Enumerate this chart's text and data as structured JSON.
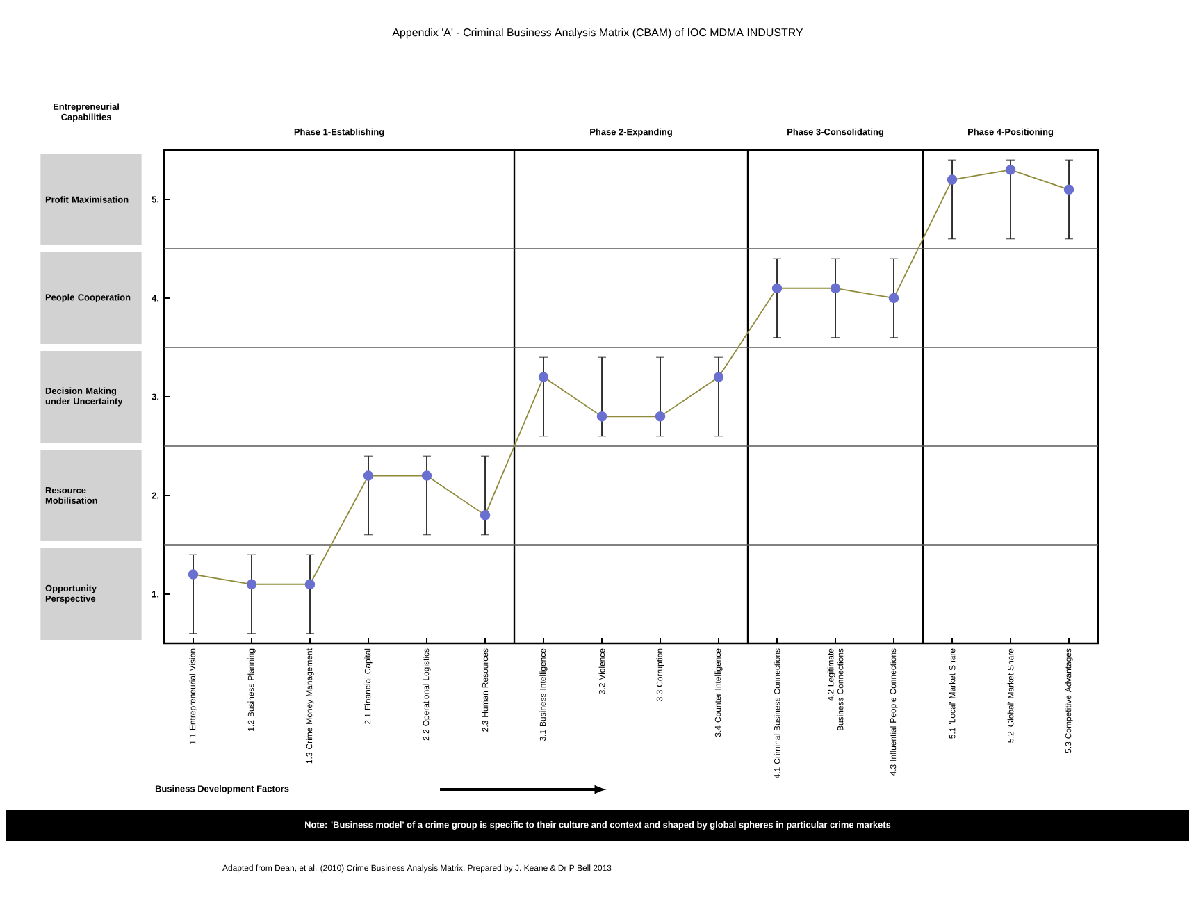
{
  "chart_data": {
    "type": "line",
    "title": "Appendix 'A' - Criminal Business Analysis Matrix (CBAM) of IOC MDMA INDUSTRY",
    "xlabel": "Business Development Factors",
    "categories": [
      "1.1 Entrepreneurial Vision",
      "1.2 Business Planning",
      "1.3 Crime Money Management",
      "2.1 Financial Capital",
      "2.2 Operational Logistics",
      "2.3 Human Resources",
      "3.1 Business Intelligence",
      "3.2 Violence",
      "3.3 Corruption",
      "3.4 Counter Intelligence",
      "4.1 Criminal Business Connections",
      "4.2 Legitimate Business Connections",
      "4.3 Influential People Connections",
      "5.1 'Local' Market Share",
      "5.2 'Global' Market Share",
      "5.3 Competitive Advantages"
    ],
    "values": [
      1.2,
      1.1,
      1.1,
      2.2,
      2.2,
      1.8,
      3.2,
      2.8,
      2.8,
      3.2,
      4.1,
      4.1,
      4.0,
      5.2,
      5.3,
      5.1
    ],
    "errors": [
      [
        0.6,
        1.4
      ],
      [
        0.6,
        1.4
      ],
      [
        0.6,
        1.4
      ],
      [
        1.6,
        2.4
      ],
      [
        1.6,
        2.4
      ],
      [
        1.6,
        2.4
      ],
      [
        2.6,
        3.4
      ],
      [
        2.6,
        3.4
      ],
      [
        2.6,
        3.4
      ],
      [
        2.6,
        3.4
      ],
      [
        3.6,
        4.4
      ],
      [
        3.6,
        4.4
      ],
      [
        3.6,
        4.4
      ],
      [
        4.6,
        5.4
      ],
      [
        4.6,
        5.4
      ],
      [
        4.6,
        5.4
      ]
    ],
    "color": "#6a70d0",
    "marker": "circle",
    "ylim": [
      0.5,
      5.5
    ],
    "yticks": [
      {
        "value": 1,
        "label": "1."
      },
      {
        "value": 2,
        "label": "2."
      },
      {
        "value": 3,
        "label": "3."
      },
      {
        "value": 4,
        "label": "4."
      },
      {
        "value": 5,
        "label": "5."
      }
    ],
    "ref_lines": [
      {
        "axis": "y",
        "value": 1.5
      },
      {
        "axis": "y",
        "value": 2.5
      },
      {
        "axis": "y",
        "value": 3.5
      },
      {
        "axis": "y",
        "value": 4.5
      }
    ],
    "annotations": [
      "Note: 'Business model' of a crime group is specific to their culture and context and shaped by global spheres in particular crime markets",
      "Adapted from Dean, et al. (2010) Crime Business Analysis Matrix, Prepared by J. Keane & Dr P Bell 2013",
      "Entrepreneurial Capabilities",
      "Phase 1-Establishing",
      "Phase 2-Expanding",
      "Phase 3-Consolidating",
      "Phase 4-Positioning",
      "Opportunity Perspective",
      "Resource Mobilisation",
      "Decision Making under Uncertainty",
      "People Cooperation",
      "Profit Maximisation"
    ]
  }
}
